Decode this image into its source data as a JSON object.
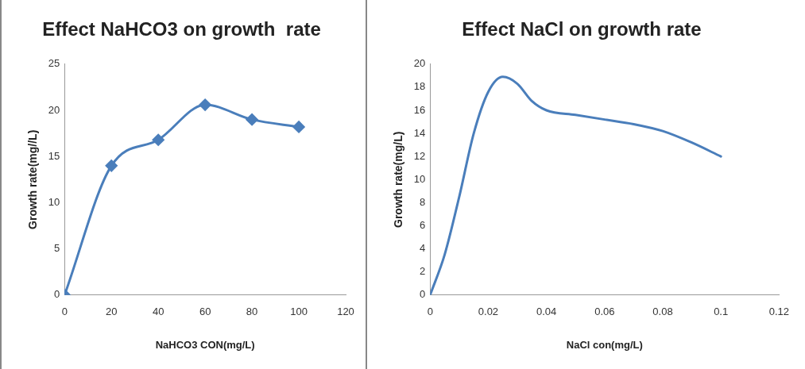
{
  "chart_data": [
    {
      "type": "line",
      "title": "Effect NaHCO3 on growth  rate",
      "xlabel": "NaHCO3 CON(mg/L)",
      "ylabel": "Growth rate(mg//L)",
      "x": [
        0,
        20,
        40,
        60,
        80,
        100
      ],
      "series": [
        {
          "color": "#4a7ebb",
          "values": [
            0,
            14,
            16.8,
            20.6,
            19,
            18.2
          ]
        }
      ],
      "marker": "diamond",
      "xlim": [
        0,
        120
      ],
      "xticks": [
        0,
        20,
        40,
        60,
        80,
        100,
        120
      ],
      "ylim": [
        0,
        25
      ],
      "yticks": [
        0,
        5,
        10,
        15,
        20,
        25
      ]
    },
    {
      "type": "line",
      "title": "Effect NaCl on growth rate",
      "xlabel": "NaCl con(mg/L)",
      "ylabel": "Growth rate(mg/L)",
      "x": [
        0,
        0.005,
        0.01,
        0.015,
        0.02,
        0.025,
        0.03,
        0.035,
        0.04,
        0.05,
        0.06,
        0.07,
        0.08,
        0.09,
        0.1
      ],
      "series": [
        {
          "color": "#4a7ebb",
          "values": [
            0,
            3.5,
            8.5,
            14,
            17.6,
            18.9,
            18.3,
            16.8,
            16,
            15.6,
            15.2,
            14.8,
            14.2,
            13.2,
            12
          ]
        }
      ],
      "marker": "none",
      "xlim": [
        0,
        0.12
      ],
      "xticks": [
        0,
        0.02,
        0.04,
        0.06,
        0.08,
        0.1,
        0.12
      ],
      "ylim": [
        0,
        20
      ],
      "yticks": [
        0,
        2,
        4,
        6,
        8,
        10,
        12,
        14,
        16,
        18,
        20
      ]
    }
  ]
}
